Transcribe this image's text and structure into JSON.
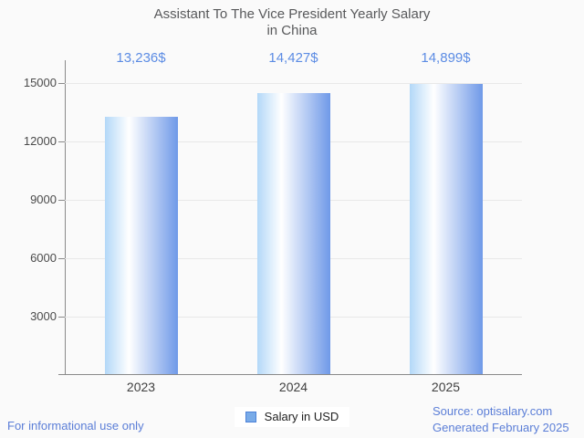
{
  "colors": {
    "background": "#fafafa",
    "axis": "#8a8a8a",
    "gridline": "#e8e8e8",
    "title_text": "#58595b",
    "value_label_blue": "#5c8ce4",
    "footer_blue": "#5b7ed7",
    "bar_gradient_left": "#b3d8f8",
    "bar_gradient_mid": "#ffffff",
    "bar_gradient_right": "#6f99e8"
  },
  "title": {
    "line1": "Assistant To The Vice President Yearly Salary",
    "line2": "in China"
  },
  "chart_data": {
    "type": "bar",
    "title": "Assistant To The Vice President Yearly Salary in China",
    "categories": [
      "2023",
      "2024",
      "2025"
    ],
    "series": [
      {
        "name": "Salary in USD",
        "values": [
          13236,
          14427,
          14899
        ]
      }
    ],
    "value_labels": [
      "13,236$",
      "14,427$",
      "14,899$"
    ],
    "xlabel": "",
    "ylabel": "",
    "ylim": [
      0,
      16170
    ],
    "yticks": [
      3000,
      6000,
      9000,
      12000,
      15000
    ],
    "ytick_labels": [
      "3000",
      "6000",
      "9000",
      "12000",
      "15000"
    ],
    "grid": true,
    "legend_position": "bottom"
  },
  "legend": {
    "label": "Salary in USD",
    "swatch_fill": "#79abe8",
    "swatch_border": "#4d82d8"
  },
  "footer": {
    "left": "For informational use only",
    "source": "Source: optisalary.com",
    "generated": "Generated February 2025"
  }
}
